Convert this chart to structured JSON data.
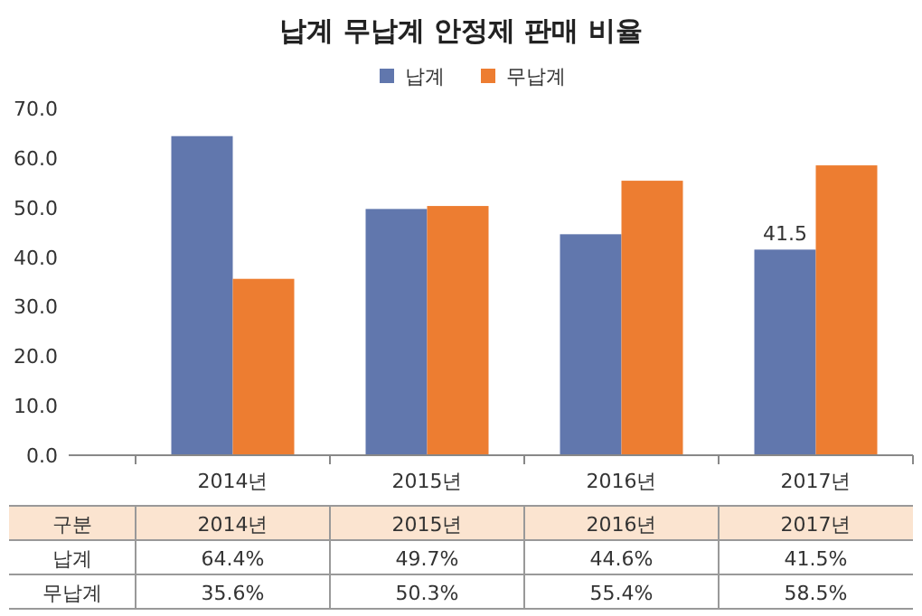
{
  "chart_data": {
    "type": "bar",
    "title": "납계 무납계 안정제 판매 비율",
    "categories": [
      "2014년",
      "2015년",
      "2016년",
      "2017년"
    ],
    "series": [
      {
        "name": "납계",
        "color": "#6177ad",
        "values": [
          64.4,
          49.7,
          44.6,
          41.5
        ],
        "value_labels": [
          "64.4%",
          "49.7%",
          "44.6%",
          "41.5%"
        ]
      },
      {
        "name": "무납계",
        "color": "#ed7d31",
        "values": [
          35.6,
          50.3,
          55.4,
          58.5
        ],
        "value_labels": [
          "35.6%",
          "50.3%",
          "55.4%",
          "58.5%"
        ]
      }
    ],
    "ylim": [
      0,
      70
    ],
    "yticks": [
      {
        "value": 0,
        "label": "0.0"
      },
      {
        "value": 10,
        "label": "10.0"
      },
      {
        "value": 20,
        "label": "20.0"
      },
      {
        "value": 30,
        "label": "30.0"
      },
      {
        "value": 40,
        "label": "40.0"
      },
      {
        "value": 50,
        "label": "50.0"
      },
      {
        "value": 60,
        "label": "60.0"
      },
      {
        "value": 70,
        "label": "70.0"
      }
    ],
    "legend_title": "구분",
    "annotations": [
      {
        "text": "41.5",
        "x": "2017년",
        "y": 41.5
      }
    ],
    "legend": "top",
    "grid": false
  }
}
